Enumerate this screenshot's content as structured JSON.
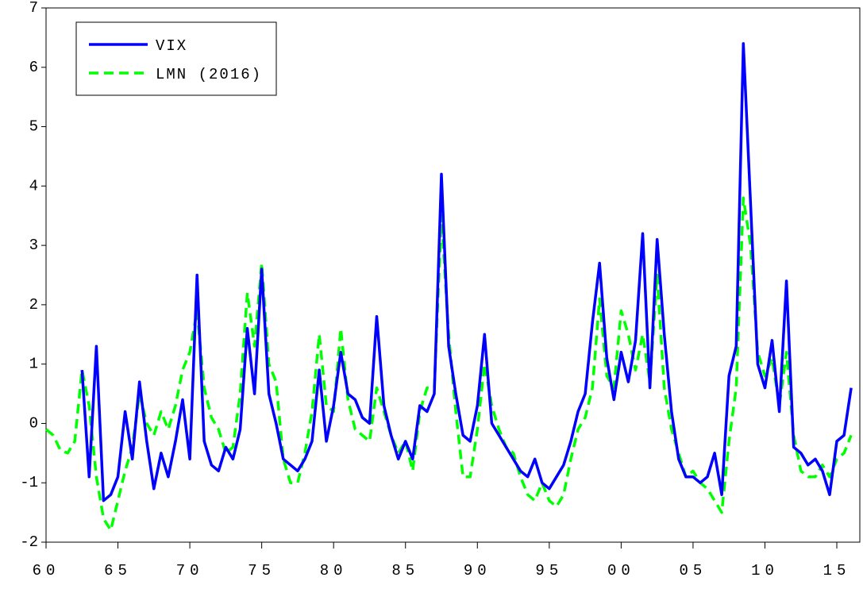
{
  "chart_data": {
    "type": "line",
    "x": [
      1960,
      1960.5,
      1961,
      1961.5,
      1962,
      1962.5,
      1963,
      1963.5,
      1964,
      1964.5,
      1965,
      1965.5,
      1966,
      1966.5,
      1967,
      1967.5,
      1968,
      1968.5,
      1969,
      1969.5,
      1970,
      1970.5,
      1971,
      1971.5,
      1972,
      1972.5,
      1973,
      1973.5,
      1974,
      1974.5,
      1975,
      1975.5,
      1976,
      1976.5,
      1977,
      1977.5,
      1978,
      1978.5,
      1979,
      1979.5,
      1980,
      1980.5,
      1981,
      1981.5,
      1982,
      1982.5,
      1983,
      1983.5,
      1984,
      1984.5,
      1985,
      1985.5,
      1986,
      1986.5,
      1987,
      1987.5,
      1988,
      1988.5,
      1989,
      1989.5,
      1990,
      1990.5,
      1991,
      1991.5,
      1992,
      1992.5,
      1993,
      1993.5,
      1994,
      1994.5,
      1995,
      1995.5,
      1996,
      1996.5,
      1997,
      1997.5,
      1998,
      1998.5,
      1999,
      1999.5,
      2000,
      2000.5,
      2001,
      2001.5,
      2002,
      2002.5,
      2003,
      2003.5,
      2004,
      2004.5,
      2005,
      2005.5,
      2006,
      2006.5,
      2007,
      2007.5,
      2008,
      2008.5,
      2009,
      2009.5,
      2010,
      2010.5,
      2011,
      2011.5,
      2012,
      2012.5,
      2013,
      2013.5,
      2014,
      2014.5,
      2015,
      2015.5,
      2016
    ],
    "series": [
      {
        "name": "VIX",
        "color": "#0000ff",
        "dashed": false,
        "values": [
          null,
          null,
          null,
          null,
          null,
          0.9,
          -0.9,
          1.3,
          -1.3,
          -1.2,
          -0.9,
          0.2,
          -0.6,
          0.7,
          -0.3,
          -1.1,
          -0.5,
          -0.9,
          -0.3,
          0.4,
          -0.6,
          2.5,
          -0.3,
          -0.7,
          -0.8,
          -0.4,
          -0.6,
          -0.1,
          1.6,
          0.5,
          2.6,
          0.5,
          0.0,
          -0.6,
          -0.7,
          -0.8,
          -0.6,
          -0.3,
          0.9,
          -0.3,
          0.3,
          1.2,
          0.5,
          0.4,
          0.1,
          0.0,
          1.8,
          0.3,
          -0.2,
          -0.6,
          -0.3,
          -0.6,
          0.3,
          0.2,
          0.5,
          4.2,
          1.3,
          0.5,
          -0.2,
          -0.3,
          0.3,
          1.5,
          0.0,
          -0.2,
          -0.4,
          -0.6,
          -0.8,
          -0.9,
          -0.6,
          -1.0,
          -1.1,
          -0.9,
          -0.7,
          -0.3,
          0.2,
          0.5,
          1.7,
          2.7,
          1.1,
          0.4,
          1.2,
          0.7,
          1.4,
          3.2,
          0.6,
          3.1,
          1.5,
          0.2,
          -0.6,
          -0.9,
          -0.9,
          -1.0,
          -0.9,
          -0.5,
          -1.2,
          0.8,
          1.3,
          6.4,
          3.7,
          1.0,
          0.6,
          1.4,
          0.2,
          2.4,
          -0.4,
          -0.5,
          -0.7,
          -0.6,
          -0.8,
          -1.2,
          -0.3,
          -0.2,
          0.6
        ]
      },
      {
        "name": "LMN (2016)",
        "color": "#00ff00",
        "dashed": true,
        "values": [
          -0.1,
          -0.2,
          -0.45,
          -0.5,
          -0.3,
          0.9,
          0.3,
          -0.9,
          -1.6,
          -1.8,
          -1.3,
          -0.8,
          -0.4,
          0.5,
          0.0,
          -0.2,
          0.2,
          -0.1,
          0.3,
          0.9,
          1.2,
          1.9,
          0.6,
          0.1,
          -0.1,
          -0.5,
          -0.4,
          0.5,
          2.2,
          1.3,
          2.7,
          1.0,
          0.7,
          -0.6,
          -1.0,
          -1.0,
          -0.5,
          0.2,
          1.5,
          0.3,
          0.2,
          1.6,
          0.4,
          -0.1,
          -0.2,
          -0.3,
          0.6,
          0.2,
          -0.2,
          -0.5,
          -0.3,
          -0.8,
          0.2,
          0.6,
          0.6,
          3.5,
          1.5,
          0.2,
          -0.9,
          -0.9,
          -0.1,
          1.0,
          0.3,
          -0.1,
          -0.4,
          -0.5,
          -0.9,
          -1.2,
          -1.3,
          -1.0,
          -1.3,
          -1.4,
          -1.2,
          -0.6,
          -0.1,
          0.1,
          0.6,
          2.1,
          0.8,
          0.6,
          1.9,
          1.5,
          0.9,
          1.5,
          0.7,
          2.5,
          0.6,
          -0.1,
          -0.5,
          -0.9,
          -0.8,
          -1.0,
          -1.1,
          -1.3,
          -1.5,
          -0.3,
          0.6,
          3.8,
          3.0,
          1.2,
          0.8,
          1.1,
          0.3,
          1.2,
          -0.2,
          -0.8,
          -0.9,
          -0.9,
          -0.7,
          -0.9,
          -0.6,
          -0.5,
          -0.2
        ]
      }
    ],
    "xlim": [
      1960,
      2016.6
    ],
    "xticks": [
      {
        "value": 1960,
        "label": "60"
      },
      {
        "value": 1965,
        "label": "65"
      },
      {
        "value": 1970,
        "label": "70"
      },
      {
        "value": 1975,
        "label": "75"
      },
      {
        "value": 1980,
        "label": "80"
      },
      {
        "value": 1985,
        "label": "85"
      },
      {
        "value": 1990,
        "label": "90"
      },
      {
        "value": 1995,
        "label": "95"
      },
      {
        "value": 2000,
        "label": "00"
      },
      {
        "value": 2005,
        "label": "05"
      },
      {
        "value": 2010,
        "label": "10"
      },
      {
        "value": 2015,
        "label": "15"
      }
    ],
    "ylim": [
      -2,
      7
    ],
    "yticks": [
      -2,
      -1,
      0,
      1,
      2,
      3,
      4,
      5,
      6,
      7
    ],
    "legend": "upper left",
    "grid": false
  }
}
